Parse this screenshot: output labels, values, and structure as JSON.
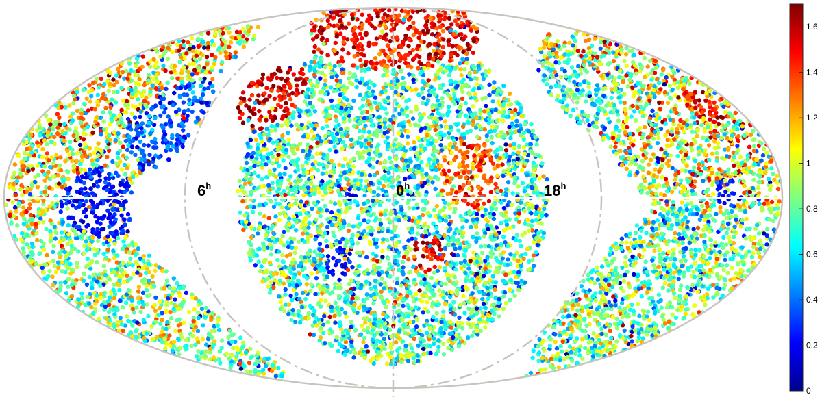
{
  "chart_data": {
    "type": "scatter",
    "projection": "Mollweide (all-sky)",
    "title": "",
    "xlabel": "",
    "ylabel": "",
    "ra_labels": [
      {
        "hour": "6",
        "sup": "h",
        "ra_deg": 90
      },
      {
        "hour": "0",
        "sup": "h",
        "ra_deg": 0
      },
      {
        "hour": "18",
        "sup": "h",
        "ra_deg": 270
      }
    ],
    "colorbar": {
      "colormap": "jet",
      "clim": [
        0,
        1.7
      ],
      "ticks": [
        "0",
        "0.2",
        "0.4",
        "0.6",
        "0.8",
        "1",
        "1.2",
        "1.4",
        "1.6"
      ]
    },
    "regions": [
      {
        "ra_deg": 0,
        "dec_deg": 0,
        "radius_deg": 72,
        "value": 0.75,
        "spread": 0.35
      },
      {
        "ra_deg": 330,
        "dec_deg": 8,
        "radius_deg": 28,
        "value": 1.35,
        "spread": 0.2
      },
      {
        "ra_deg": 345,
        "dec_deg": -20,
        "radius_deg": 20,
        "value": 1.5,
        "spread": 0.2
      },
      {
        "ra_deg": 25,
        "dec_deg": -25,
        "radius_deg": 14,
        "value": 0.25,
        "spread": 0.1
      },
      {
        "ra_deg": 20,
        "dec_deg": 2,
        "radius_deg": 10,
        "value": 0.2,
        "spread": 0.1
      },
      {
        "ra_deg": 65,
        "dec_deg": 40,
        "radius_deg": 14,
        "value": 1.55,
        "spread": 0.15
      },
      {
        "ra_deg": 160,
        "dec_deg": 30,
        "radius_deg": 45,
        "value": 1.05,
        "spread": 0.45
      },
      {
        "ra_deg": 120,
        "dec_deg": 30,
        "radius_deg": 20,
        "value": 0.35,
        "spread": 0.15
      },
      {
        "ra_deg": 140,
        "dec_deg": 0,
        "radius_deg": 20,
        "value": 0.25,
        "spread": 0.1
      },
      {
        "ra_deg": 160,
        "dec_deg": -40,
        "radius_deg": 40,
        "value": 0.85,
        "spread": 0.35
      },
      {
        "ra_deg": 215,
        "dec_deg": 30,
        "radius_deg": 40,
        "value": 1.0,
        "spread": 0.45
      },
      {
        "ra_deg": 200,
        "dec_deg": 35,
        "radius_deg": 18,
        "value": 1.45,
        "spread": 0.2
      },
      {
        "ra_deg": 205,
        "dec_deg": 3,
        "radius_deg": 8,
        "value": 0.25,
        "spread": 0.1
      },
      {
        "ra_deg": 220,
        "dec_deg": -35,
        "radius_deg": 35,
        "value": 0.8,
        "spread": 0.35
      },
      {
        "ra_deg": 250,
        "dec_deg": 40,
        "radius_deg": 18,
        "value": 0.7,
        "spread": 0.3
      },
      {
        "ra_deg": 0,
        "dec_deg": 70,
        "radius_deg": 25,
        "value": 1.5,
        "spread": 0.2
      }
    ]
  }
}
